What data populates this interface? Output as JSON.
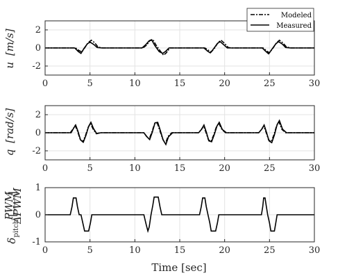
{
  "chart_data": [
    {
      "type": "line",
      "id": "u",
      "ylabel": "u [m/s]",
      "ylabel_var": "u",
      "ylabel_unit": "[m/s]",
      "xlim": [
        0,
        30
      ],
      "ylim": [
        -3,
        3
      ],
      "xticks": [
        0,
        5,
        10,
        15,
        20,
        25,
        30
      ],
      "yticks": [
        -2,
        0,
        2
      ],
      "xticklabels": [
        "0",
        "5",
        "10",
        "15",
        "20",
        "25",
        "30"
      ],
      "yticklabels": [
        "-2",
        "0",
        "2"
      ],
      "grid": true,
      "legend": {
        "placement": "top-right",
        "entries": [
          "Modeled",
          "Measured"
        ]
      },
      "series": [
        {
          "name": "Modeled",
          "style": "dash-dot",
          "points": [
            [
              0,
              0
            ],
            [
              3.4,
              0
            ],
            [
              3.8,
              -0.3
            ],
            [
              4.1,
              -0.45
            ],
            [
              4.4,
              0
            ],
            [
              4.8,
              0.6
            ],
            [
              5.15,
              0.85
            ],
            [
              5.5,
              0.6
            ],
            [
              5.9,
              0.1
            ],
            [
              6.4,
              0
            ],
            [
              10.9,
              0
            ],
            [
              11.3,
              0.3
            ],
            [
              11.7,
              0.85
            ],
            [
              12.0,
              0.95
            ],
            [
              12.3,
              0.4
            ],
            [
              12.8,
              -0.3
            ],
            [
              13.2,
              -0.8
            ],
            [
              13.5,
              -0.55
            ],
            [
              13.9,
              0
            ],
            [
              17.8,
              0
            ],
            [
              18.2,
              -0.25
            ],
            [
              18.5,
              -0.45
            ],
            [
              18.9,
              0
            ],
            [
              19.3,
              0.65
            ],
            [
              19.6,
              0.85
            ],
            [
              20.0,
              0.5
            ],
            [
              20.4,
              0.05
            ],
            [
              20.8,
              0
            ],
            [
              24.3,
              0
            ],
            [
              24.7,
              -0.35
            ],
            [
              25.0,
              -0.55
            ],
            [
              25.4,
              0
            ],
            [
              25.8,
              0.6
            ],
            [
              26.1,
              0.85
            ],
            [
              26.5,
              0.55
            ],
            [
              26.9,
              0.1
            ],
            [
              27.4,
              0
            ],
            [
              30,
              0
            ]
          ]
        },
        {
          "name": "Measured",
          "style": "solid",
          "points": [
            [
              0,
              0
            ],
            [
              3.3,
              0
            ],
            [
              3.7,
              -0.4
            ],
            [
              4.0,
              -0.6
            ],
            [
              4.3,
              -0.1
            ],
            [
              4.7,
              0.45
            ],
            [
              5.0,
              0.65
            ],
            [
              5.4,
              0.4
            ],
            [
              5.8,
              0.05
            ],
            [
              6.3,
              0
            ],
            [
              10.8,
              0
            ],
            [
              11.2,
              0.35
            ],
            [
              11.6,
              0.8
            ],
            [
              11.9,
              0.85
            ],
            [
              12.2,
              0.3
            ],
            [
              12.7,
              -0.4
            ],
            [
              13.1,
              -0.6
            ],
            [
              13.4,
              -0.4
            ],
            [
              13.8,
              0
            ],
            [
              17.7,
              0
            ],
            [
              18.1,
              -0.35
            ],
            [
              18.4,
              -0.55
            ],
            [
              18.8,
              -0.05
            ],
            [
              19.2,
              0.5
            ],
            [
              19.5,
              0.7
            ],
            [
              19.9,
              0.35
            ],
            [
              20.3,
              0
            ],
            [
              24.2,
              0
            ],
            [
              24.6,
              -0.4
            ],
            [
              24.9,
              -0.65
            ],
            [
              25.3,
              -0.1
            ],
            [
              25.7,
              0.45
            ],
            [
              26.0,
              0.7
            ],
            [
              26.4,
              0.45
            ],
            [
              26.8,
              0.05
            ],
            [
              27.3,
              0
            ],
            [
              30,
              0
            ]
          ]
        }
      ]
    },
    {
      "type": "line",
      "id": "q",
      "ylabel": "q [rad/s]",
      "ylabel_var": "q",
      "ylabel_unit": "[rad/s]",
      "xlim": [
        0,
        30
      ],
      "ylim": [
        -3,
        3
      ],
      "xticks": [
        0,
        5,
        10,
        15,
        20,
        25,
        30
      ],
      "yticks": [
        -2,
        0,
        2
      ],
      "xticklabels": [
        "0",
        "5",
        "10",
        "15",
        "20",
        "25",
        "30"
      ],
      "yticklabels": [
        "-2",
        "0",
        "2"
      ],
      "grid": true,
      "series": [
        {
          "name": "Modeled",
          "style": "dash-dot",
          "points": [
            [
              0,
              0
            ],
            [
              2.8,
              0
            ],
            [
              3.1,
              0.4
            ],
            [
              3.35,
              0.8
            ],
            [
              3.6,
              0.2
            ],
            [
              3.9,
              -0.7
            ],
            [
              4.2,
              -1.0
            ],
            [
              4.5,
              -0.3
            ],
            [
              4.8,
              0.6
            ],
            [
              5.05,
              1.05
            ],
            [
              5.35,
              0.4
            ],
            [
              5.7,
              -0.1
            ],
            [
              6.1,
              0
            ],
            [
              11.0,
              0
            ],
            [
              11.3,
              -0.4
            ],
            [
              11.6,
              -0.7
            ],
            [
              11.9,
              0.1
            ],
            [
              12.2,
              1.0
            ],
            [
              12.5,
              1.05
            ],
            [
              12.8,
              0.2
            ],
            [
              13.1,
              -0.7
            ],
            [
              13.4,
              -1.2
            ],
            [
              13.7,
              -0.4
            ],
            [
              14.1,
              0
            ],
            [
              17.1,
              0
            ],
            [
              17.4,
              0.35
            ],
            [
              17.65,
              0.75
            ],
            [
              17.9,
              0.1
            ],
            [
              18.2,
              -0.8
            ],
            [
              18.5,
              -0.95
            ],
            [
              18.8,
              -0.2
            ],
            [
              19.1,
              0.7
            ],
            [
              19.35,
              1.05
            ],
            [
              19.7,
              0.35
            ],
            [
              20.1,
              0
            ],
            [
              23.8,
              0
            ],
            [
              24.1,
              0.35
            ],
            [
              24.35,
              0.75
            ],
            [
              24.6,
              0.1
            ],
            [
              24.9,
              -0.8
            ],
            [
              25.2,
              -1.0
            ],
            [
              25.5,
              -0.2
            ],
            [
              25.8,
              0.8
            ],
            [
              26.05,
              1.2
            ],
            [
              26.4,
              0.35
            ],
            [
              26.8,
              0
            ],
            [
              30,
              0
            ]
          ]
        },
        {
          "name": "Measured",
          "style": "solid",
          "points": [
            [
              0,
              0
            ],
            [
              2.9,
              0
            ],
            [
              3.15,
              0.45
            ],
            [
              3.4,
              0.85
            ],
            [
              3.65,
              0.2
            ],
            [
              3.95,
              -0.8
            ],
            [
              4.25,
              -1.05
            ],
            [
              4.55,
              -0.3
            ],
            [
              4.85,
              0.7
            ],
            [
              5.1,
              1.15
            ],
            [
              5.4,
              0.45
            ],
            [
              5.75,
              -0.1
            ],
            [
              6.2,
              0
            ],
            [
              11.0,
              0
            ],
            [
              11.35,
              -0.45
            ],
            [
              11.65,
              -0.75
            ],
            [
              11.95,
              0.1
            ],
            [
              12.25,
              1.1
            ],
            [
              12.55,
              1.15
            ],
            [
              12.85,
              0.2
            ],
            [
              13.15,
              -0.8
            ],
            [
              13.45,
              -1.3
            ],
            [
              13.75,
              -0.45
            ],
            [
              14.2,
              0
            ],
            [
              17.1,
              0
            ],
            [
              17.45,
              0.4
            ],
            [
              17.7,
              0.85
            ],
            [
              17.95,
              0.1
            ],
            [
              18.25,
              -0.9
            ],
            [
              18.55,
              -1.0
            ],
            [
              18.85,
              -0.2
            ],
            [
              19.15,
              0.75
            ],
            [
              19.4,
              1.15
            ],
            [
              19.75,
              0.35
            ],
            [
              20.2,
              0
            ],
            [
              23.8,
              0
            ],
            [
              24.15,
              0.4
            ],
            [
              24.4,
              0.85
            ],
            [
              24.65,
              0.1
            ],
            [
              24.95,
              -0.9
            ],
            [
              25.25,
              -1.1
            ],
            [
              25.55,
              -0.25
            ],
            [
              25.85,
              0.9
            ],
            [
              26.1,
              1.35
            ],
            [
              26.45,
              0.4
            ],
            [
              26.9,
              0
            ],
            [
              30,
              0
            ]
          ]
        }
      ]
    },
    {
      "type": "line",
      "id": "delta_pitch",
      "xlabel": "Time [sec]",
      "ylabel_main": "δ",
      "ylabel_sub": "pitch",
      "ylabel_frac_num": "PWM",
      "ylabel_frac_den": "ΔPWM",
      "xlim": [
        0,
        30
      ],
      "ylim": [
        -1,
        1
      ],
      "xticks": [
        0,
        5,
        10,
        15,
        20,
        25,
        30
      ],
      "yticks": [
        -1,
        0,
        1
      ],
      "xticklabels": [
        "0",
        "5",
        "10",
        "15",
        "20",
        "25",
        "30"
      ],
      "yticklabels": [
        "-1",
        "0",
        "1"
      ],
      "grid": true,
      "series": [
        {
          "name": "Measured",
          "style": "solid",
          "points": [
            [
              0,
              0
            ],
            [
              2.8,
              0
            ],
            [
              3.0,
              0.3
            ],
            [
              3.15,
              0.62
            ],
            [
              3.45,
              0.62
            ],
            [
              3.6,
              0.3
            ],
            [
              3.8,
              0
            ],
            [
              4.0,
              0
            ],
            [
              4.2,
              -0.3
            ],
            [
              4.4,
              -0.6
            ],
            [
              4.85,
              -0.6
            ],
            [
              5.05,
              -0.3
            ],
            [
              5.2,
              0
            ],
            [
              11.0,
              0
            ],
            [
              11.25,
              -0.35
            ],
            [
              11.45,
              -0.6
            ],
            [
              11.6,
              -0.45
            ],
            [
              11.8,
              0
            ],
            [
              12.0,
              0.35
            ],
            [
              12.15,
              0.65
            ],
            [
              12.6,
              0.65
            ],
            [
              12.8,
              0.3
            ],
            [
              13.0,
              0
            ],
            [
              17.2,
              0
            ],
            [
              17.4,
              0.3
            ],
            [
              17.55,
              0.62
            ],
            [
              17.8,
              0.62
            ],
            [
              17.95,
              0.3
            ],
            [
              18.15,
              0
            ],
            [
              18.35,
              -0.3
            ],
            [
              18.5,
              -0.6
            ],
            [
              19.0,
              -0.6
            ],
            [
              19.2,
              -0.3
            ],
            [
              19.35,
              0
            ],
            [
              24.1,
              0
            ],
            [
              24.25,
              0.3
            ],
            [
              24.35,
              0.62
            ],
            [
              24.5,
              0.62
            ],
            [
              24.65,
              0.3
            ],
            [
              24.8,
              0
            ],
            [
              25.0,
              -0.3
            ],
            [
              25.15,
              -0.6
            ],
            [
              25.55,
              -0.6
            ],
            [
              25.7,
              -0.3
            ],
            [
              25.85,
              0
            ],
            [
              30,
              0
            ]
          ]
        }
      ]
    }
  ]
}
